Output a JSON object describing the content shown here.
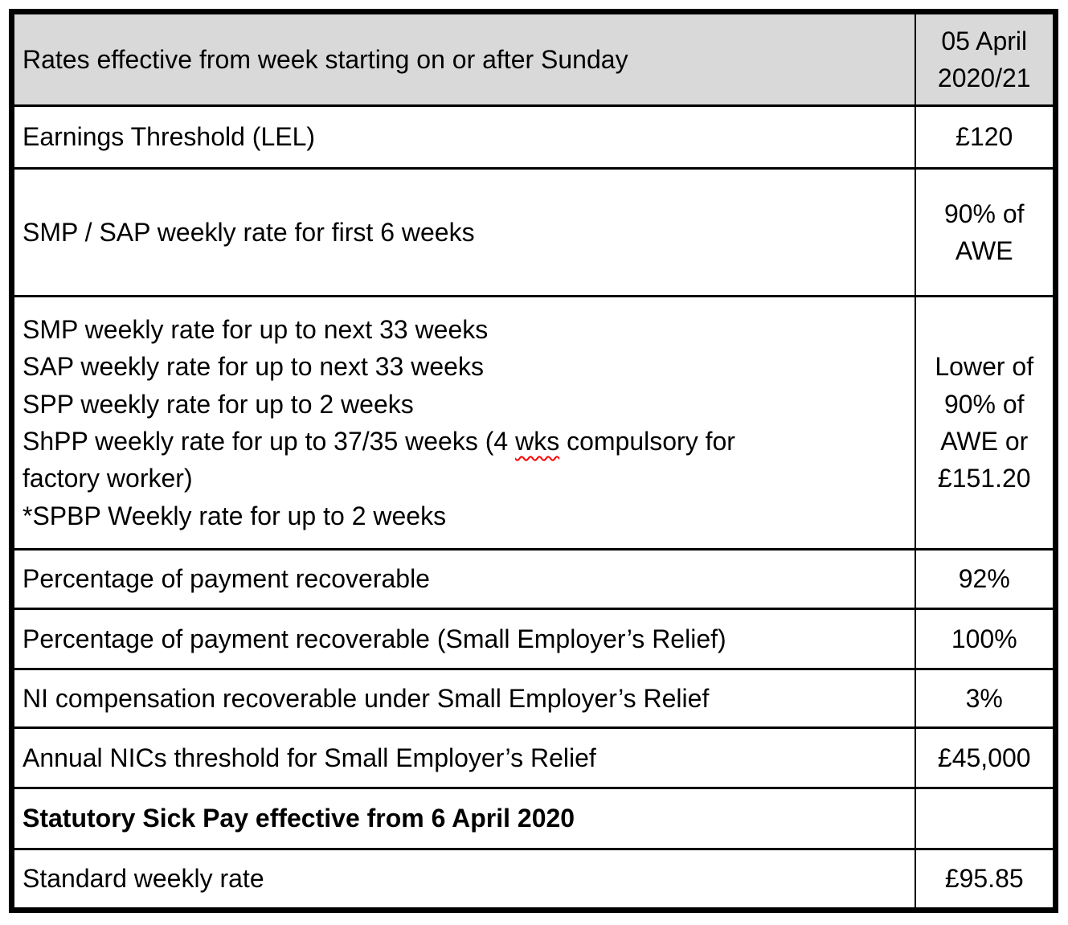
{
  "colors": {
    "border-color": "#000000",
    "header-bg": "#d9d9d9",
    "text-color": "#000000",
    "spellcheck-color": "#ff0000",
    "page-bg": "#ffffff"
  },
  "table": {
    "header": {
      "label": "Rates effective from week starting on or after Sunday",
      "value": "05 April 2020/21"
    },
    "rows": [
      {
        "label": "Earnings Threshold (LEL)",
        "value": "£120"
      },
      {
        "label": "SMP / SAP weekly rate for first 6 weeks",
        "value": "90% of AWE"
      },
      {
        "lines": [
          "SMP weekly rate for up to next 33 weeks",
          "SAP weekly rate for up to next 33 weeks",
          "SPP weekly rate for up to 2 weeks"
        ],
        "shpp": {
          "pre": "ShPP weekly rate for up to 37/35 weeks (4 ",
          "misspelled": "wks",
          "post": " compulsory for",
          "wrap": "factory worker)"
        },
        "last_line": "*SPBP Weekly rate for up to 2 weeks",
        "value": "Lower of 90% of AWE or £151.20"
      },
      {
        "label": "Percentage of payment recoverable",
        "value": "92%"
      },
      {
        "label": "Percentage of payment recoverable (Small Employer’s Relief)",
        "value": "100%"
      },
      {
        "label": "NI compensation recoverable under Small Employer’s Relief",
        "value": "3%"
      },
      {
        "label": "Annual NICs threshold for Small Employer’s Relief",
        "value": "£45,000"
      },
      {
        "label": "Statutory Sick Pay effective from 6 April 2020",
        "value": ""
      },
      {
        "label": "Standard weekly rate",
        "value": "£95.85"
      }
    ]
  }
}
